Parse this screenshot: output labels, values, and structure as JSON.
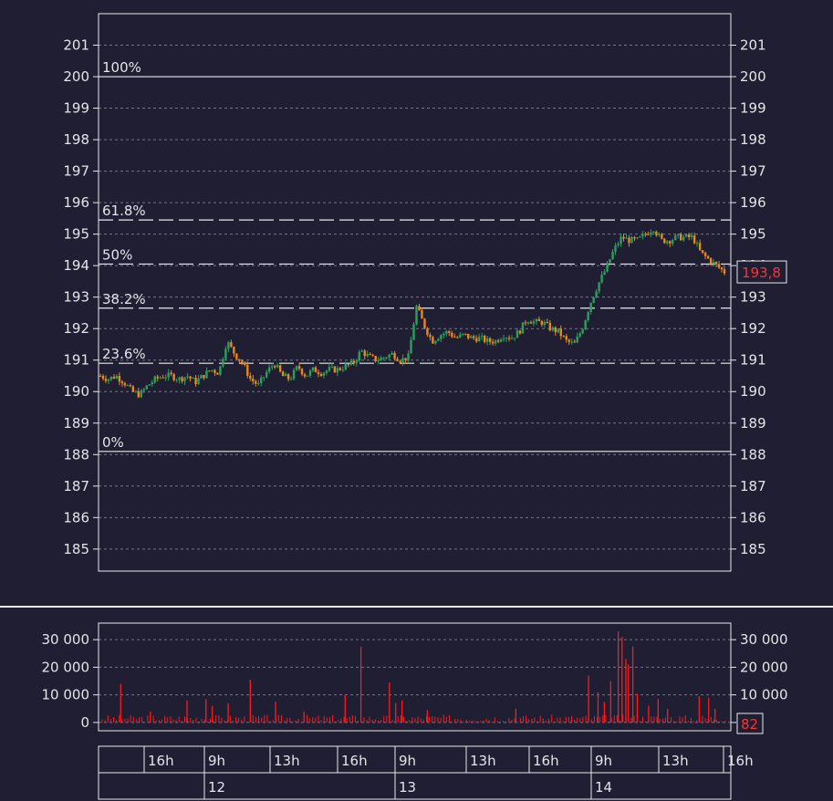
{
  "chart_data": [
    {
      "type": "candlestick",
      "ylim": [
        184.3,
        202
      ],
      "y_ticks": [
        "185",
        "186",
        "187",
        "188",
        "189",
        "190",
        "191",
        "192",
        "193",
        "194",
        "195",
        "196",
        "197",
        "198",
        "199",
        "200",
        "201"
      ],
      "grid": true,
      "last_price": 193.8,
      "last_price_label": "193,8",
      "fibonacci": {
        "high": 200.0,
        "low": 188.1,
        "levels": [
          {
            "label": "100%",
            "value": 200.0
          },
          {
            "label": "61.8%",
            "value": 195.45
          },
          {
            "label": "50%",
            "value": 194.05
          },
          {
            "label": "38.2%",
            "value": 192.65
          },
          {
            "label": "23.6%",
            "value": 190.9
          },
          {
            "label": "0%",
            "value": 188.1
          }
        ]
      },
      "price_path": [
        190.5,
        190.4,
        190.5,
        190.3,
        190.0,
        189.9,
        190.2,
        190.4,
        190.5,
        190.5,
        190.4,
        190.5,
        190.3,
        190.5,
        190.7,
        190.6,
        191.6,
        191.2,
        190.9,
        190.4,
        190.2,
        190.6,
        190.9,
        190.5,
        190.4,
        190.8,
        190.5,
        190.7,
        190.6,
        190.7,
        190.7,
        190.8,
        190.9,
        191.3,
        191.1,
        191.0,
        191.1,
        191.2,
        191.0,
        191.1,
        192.7,
        192.1,
        191.6,
        191.8,
        191.9,
        191.7,
        191.8,
        191.7,
        191.7,
        191.6,
        191.6,
        191.8,
        191.7,
        191.9,
        192.3,
        192.2,
        192.2,
        192.0,
        191.9,
        191.6,
        191.5,
        192.0,
        192.8,
        193.4,
        193.9,
        194.5,
        194.9,
        194.8,
        194.8,
        195.0,
        195.2,
        194.8,
        194.8,
        194.9,
        194.9,
        194.9,
        194.4,
        194.2,
        194.0,
        193.8
      ]
    },
    {
      "type": "bar",
      "name": "volume",
      "ylim": [
        -3000,
        36000
      ],
      "y_ticks": [
        "0",
        "10 000",
        "20 000",
        "30 000"
      ],
      "y_tick_values": [
        0,
        10000,
        20000,
        30000
      ],
      "last_value_label": "82",
      "spikes": [
        {
          "x": 0.035,
          "v": 14000
        },
        {
          "x": 0.082,
          "v": 4000
        },
        {
          "x": 0.14,
          "v": 8000
        },
        {
          "x": 0.17,
          "v": 8500
        },
        {
          "x": 0.18,
          "v": 6000
        },
        {
          "x": 0.205,
          "v": 7000
        },
        {
          "x": 0.24,
          "v": 15500
        },
        {
          "x": 0.28,
          "v": 7500
        },
        {
          "x": 0.325,
          "v": 4000
        },
        {
          "x": 0.39,
          "v": 10000
        },
        {
          "x": 0.415,
          "v": 27500
        },
        {
          "x": 0.46,
          "v": 14500
        },
        {
          "x": 0.47,
          "v": 7000
        },
        {
          "x": 0.48,
          "v": 8000
        },
        {
          "x": 0.52,
          "v": 4500
        },
        {
          "x": 0.66,
          "v": 5000
        },
        {
          "x": 0.775,
          "v": 17000
        },
        {
          "x": 0.79,
          "v": 11000
        },
        {
          "x": 0.8,
          "v": 7500
        },
        {
          "x": 0.81,
          "v": 15000
        },
        {
          "x": 0.822,
          "v": 33000
        },
        {
          "x": 0.828,
          "v": 31000
        },
        {
          "x": 0.834,
          "v": 23000
        },
        {
          "x": 0.838,
          "v": 21000
        },
        {
          "x": 0.845,
          "v": 27500
        },
        {
          "x": 0.852,
          "v": 10500
        },
        {
          "x": 0.87,
          "v": 6000
        },
        {
          "x": 0.885,
          "v": 8500
        },
        {
          "x": 0.9,
          "v": 5000
        },
        {
          "x": 0.95,
          "v": 9500
        },
        {
          "x": 0.965,
          "v": 9000
        },
        {
          "x": 0.975,
          "v": 5000
        }
      ]
    }
  ],
  "time_axis": {
    "hours": [
      {
        "label": "16h"
      },
      {
        "label": "9h"
      },
      {
        "label": "13h"
      },
      {
        "label": "16h"
      },
      {
        "label": "9h"
      },
      {
        "label": "13h"
      },
      {
        "label": "16h"
      },
      {
        "label": "9h"
      },
      {
        "label": "13h"
      },
      {
        "label": "16h"
      }
    ],
    "days": [
      {
        "label": "12"
      },
      {
        "label": "13"
      },
      {
        "label": "14"
      }
    ]
  },
  "colors": {
    "background": "#1f1e33",
    "frame": "#e8e8ee",
    "candle_up": "#2ca05a",
    "candle_down": "#e8891f",
    "volume": "#ff1a1a",
    "last_price": "#ff3333"
  }
}
